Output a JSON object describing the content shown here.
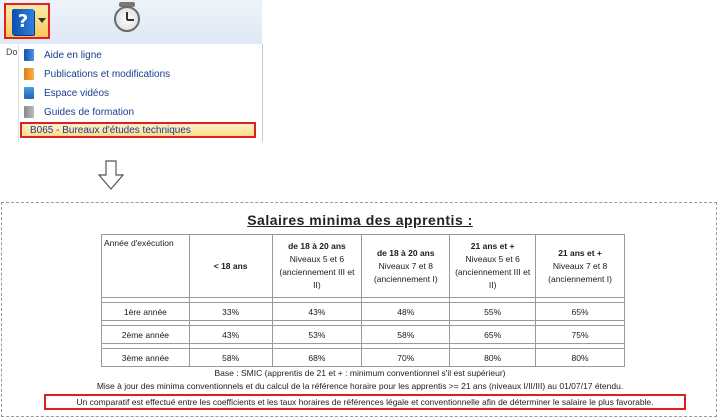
{
  "toolbar": {
    "help_icon": "help-book-icon",
    "clock_icon": "stopwatch-icon",
    "doc_stub": "Do"
  },
  "menu": {
    "items": [
      {
        "label": "Aide en ligne",
        "icon": "book-help-icon"
      },
      {
        "label": "Publications et modifications",
        "icon": "publication-icon"
      },
      {
        "label": "Espace vidéos",
        "icon": "video-icon"
      },
      {
        "label": "Guides de formation",
        "icon": "guide-icon"
      }
    ],
    "highlighted_item": "B065 - Bureaux d'études techniques",
    "highlight_color": "#e02020"
  },
  "table": {
    "title": "Salaires minima des apprentis :",
    "headers": [
      {
        "bold": "",
        "lines": [
          "Année d'exécution"
        ]
      },
      {
        "bold": "< 18 ans",
        "lines": []
      },
      {
        "bold": "de 18 à 20 ans",
        "lines": [
          "Niveaux 5 et 6",
          "(anciennement III et II)"
        ]
      },
      {
        "bold": "de 18 à 20 ans",
        "lines": [
          "Niveaux 7 et 8",
          "(anciennement I)"
        ]
      },
      {
        "bold": "21 ans et +",
        "lines": [
          "Niveaux 5 et 6",
          "(anciennement III et II)"
        ]
      },
      {
        "bold": "21 ans et +",
        "lines": [
          "Niveaux 7 et 8",
          "(anciennement I)"
        ]
      }
    ],
    "rows": [
      [
        "1ère année",
        "33%",
        "43%",
        "48%",
        "55%",
        "65%"
      ],
      [
        "2ème année",
        "43%",
        "53%",
        "58%",
        "65%",
        "75%"
      ],
      [
        "3ème année",
        "58%",
        "68%",
        "70%",
        "80%",
        "80%"
      ]
    ]
  },
  "notes": {
    "base": "Base : SMIC (apprentis de 21 et + : minimum conventionnel s'il est supérieur)",
    "update": "Mise à jour des minima conventionnels et du calcul de la référence horaire pour les apprentis >= 21 ans (niveaux I/II/III) au 01/07/17 étendu.",
    "highlighted": "Un comparatif est effectué entre les coefficients et les taux horaires de références légale et conventionnelle afin de déterminer le salaire le plus favorable."
  }
}
